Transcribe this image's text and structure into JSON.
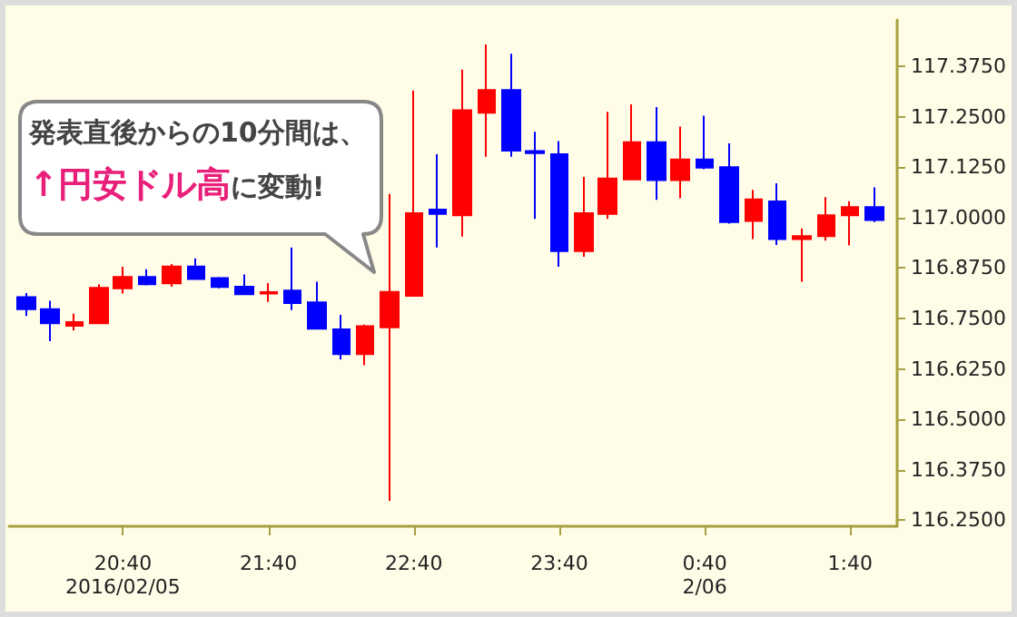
{
  "chart_data": {
    "type": "candlestick",
    "annotations": [
      "発表直後からの10分間は、",
      "↑円安ドル高",
      "に変動!"
    ],
    "x": [
      "2016-02-05T20:00",
      "2016-02-05T20:10",
      "2016-02-05T20:20",
      "2016-02-05T20:30",
      "2016-02-05T20:40",
      "2016-02-05T20:50",
      "2016-02-05T21:00",
      "2016-02-05T21:10",
      "2016-02-05T21:20",
      "2016-02-05T21:30",
      "2016-02-05T21:40",
      "2016-02-05T21:50",
      "2016-02-05T22:00",
      "2016-02-05T22:10",
      "2016-02-05T22:20",
      "2016-02-05T22:30",
      "2016-02-05T22:40",
      "2016-02-05T22:50",
      "2016-02-05T23:00",
      "2016-02-05T23:10",
      "2016-02-05T23:20",
      "2016-02-05T23:30",
      "2016-02-05T23:40",
      "2016-02-05T23:50",
      "2016-02-06T00:00",
      "2016-02-06T00:10",
      "2016-02-06T00:20",
      "2016-02-06T00:30",
      "2016-02-06T00:40",
      "2016-02-06T00:50",
      "2016-02-06T01:00",
      "2016-02-06T01:10",
      "2016-02-06T01:20",
      "2016-02-06T01:30",
      "2016-02-06T01:40",
      "2016-02-06T01:50"
    ],
    "ohlc": [
      [
        116.803,
        116.813,
        116.756,
        116.773
      ],
      [
        116.773,
        116.794,
        116.694,
        116.738
      ],
      [
        116.732,
        116.762,
        116.72,
        116.741
      ],
      [
        116.738,
        116.835,
        116.738,
        116.826
      ],
      [
        116.825,
        116.878,
        116.812,
        116.853
      ],
      [
        116.853,
        116.872,
        116.832,
        116.835
      ],
      [
        116.837,
        116.885,
        116.829,
        116.879
      ],
      [
        116.879,
        116.899,
        116.846,
        116.848
      ],
      [
        116.85,
        116.853,
        116.825,
        116.828
      ],
      [
        116.829,
        116.859,
        116.81,
        116.81
      ],
      [
        116.812,
        116.838,
        116.791,
        116.815
      ],
      [
        116.819,
        116.926,
        116.771,
        116.788
      ],
      [
        116.79,
        116.841,
        116.725,
        116.725
      ],
      [
        116.723,
        116.759,
        116.648,
        116.662
      ],
      [
        116.662,
        116.735,
        116.634,
        116.731
      ],
      [
        116.728,
        117.059,
        116.298,
        116.816
      ],
      [
        116.806,
        117.315,
        116.806,
        117.011
      ],
      [
        117.02,
        117.157,
        116.926,
        117.009
      ],
      [
        117.006,
        117.367,
        116.953,
        117.266
      ],
      [
        117.26,
        117.429,
        117.151,
        117.316
      ],
      [
        117.316,
        117.406,
        117.151,
        117.166
      ],
      [
        117.165,
        117.213,
        116.997,
        117.16
      ],
      [
        117.157,
        117.19,
        116.878,
        116.917
      ],
      [
        116.917,
        117.101,
        116.903,
        117.011
      ],
      [
        117.009,
        117.262,
        116.997,
        117.097
      ],
      [
        117.095,
        117.281,
        117.095,
        117.187
      ],
      [
        117.187,
        117.274,
        117.044,
        117.093
      ],
      [
        117.093,
        117.226,
        117.048,
        117.144
      ],
      [
        117.144,
        117.253,
        117.12,
        117.124
      ],
      [
        117.125,
        117.184,
        116.985,
        116.989
      ],
      [
        116.992,
        117.069,
        116.947,
        117.045
      ],
      [
        117.04,
        117.085,
        116.932,
        116.947
      ],
      [
        116.947,
        116.973,
        116.841,
        116.954
      ],
      [
        116.954,
        117.051,
        116.943,
        117.006
      ],
      [
        117.006,
        117.041,
        116.931,
        117.026
      ],
      [
        117.026,
        117.075,
        116.989,
        116.994
      ]
    ],
    "colors": [
      "#0000ff",
      "#0000ff",
      "#ff0000",
      "#ff0000",
      "#ff0000",
      "#0000ff",
      "#ff0000",
      "#0000ff",
      "#0000ff",
      "#0000ff",
      "#ff0000",
      "#0000ff",
      "#0000ff",
      "#0000ff",
      "#ff0000",
      "#ff0000",
      "#ff0000",
      "#0000ff",
      "#ff0000",
      "#ff0000",
      "#0000ff",
      "#0000ff",
      "#0000ff",
      "#ff0000",
      "#ff0000",
      "#ff0000",
      "#0000ff",
      "#ff0000",
      "#0000ff",
      "#0000ff",
      "#ff0000",
      "#0000ff",
      "#ff0000",
      "#ff0000",
      "#ff0000",
      "#0000ff"
    ],
    "xlim": [
      "2016-02-05T19:53",
      "2016-02-06T01:59"
    ],
    "xticks": [
      {
        "value": "2016-02-05T20:40",
        "label": "20:40\n2016/02/05"
      },
      {
        "value": "2016-02-05T21:40",
        "label": "21:40"
      },
      {
        "value": "2016-02-05T22:40",
        "label": "22:40"
      },
      {
        "value": "2016-02-05T23:40",
        "label": "23:40"
      },
      {
        "value": "2016-02-06T00:40",
        "label": "0:40\n2/06"
      },
      {
        "value": "2016-02-06T01:40",
        "label": "1:40"
      }
    ],
    "ylim": [
      116.235,
      117.49
    ],
    "yticks": [
      {
        "value": 116.25,
        "label": "116.2500"
      },
      {
        "value": 116.375,
        "label": "116.3750"
      },
      {
        "value": 116.5,
        "label": "116.5000"
      },
      {
        "value": 116.625,
        "label": "116.6250"
      },
      {
        "value": 116.75,
        "label": "116.7500"
      },
      {
        "value": 116.875,
        "label": "116.8750"
      },
      {
        "value": 117,
        "label": "117.0000"
      },
      {
        "value": 117.125,
        "label": "117.1250"
      },
      {
        "value": 117.25,
        "label": "117.2500"
      },
      {
        "value": 117.375,
        "label": "117.3750"
      }
    ],
    "grid": false
  }
}
